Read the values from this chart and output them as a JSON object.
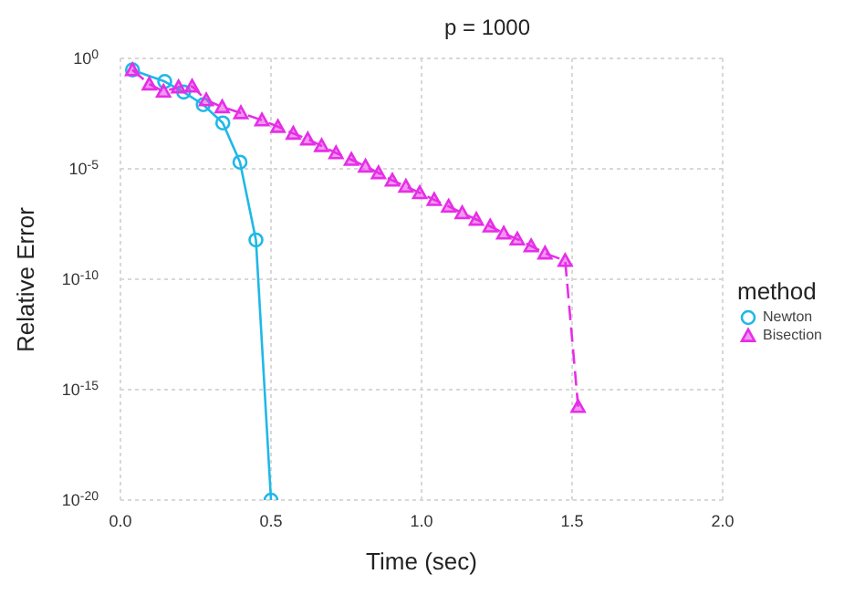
{
  "chart_data": {
    "type": "line",
    "title": "p = 1000",
    "xlabel": "Time (sec)",
    "ylabel": "Relative Error",
    "legend_title": "method",
    "log": "y",
    "grid": true,
    "legend": "right",
    "xlim": [
      0,
      2
    ],
    "xticks": [
      {
        "value": 0,
        "label": "0.0"
      },
      {
        "value": 0.5,
        "label": "0.5"
      },
      {
        "value": 1,
        "label": "1.0"
      },
      {
        "value": 1.5,
        "label": "1.5"
      },
      {
        "value": 2,
        "label": "2.0"
      }
    ],
    "ylim": [
      1e-20,
      1
    ],
    "yticks": [
      {
        "value": 1e-20,
        "label": "10$^{-20}$"
      },
      {
        "value": 1e-15,
        "label": "10$^{-15}$"
      },
      {
        "value": 1e-10,
        "label": "10$^{-10}$"
      },
      {
        "value": 1e-05,
        "label": "10$^{-5}$"
      },
      {
        "value": 1,
        "label": "10$^{0}$"
      }
    ],
    "series": [
      {
        "name": "Newton",
        "color": "#1fb8e8",
        "marker": "circle",
        "line_style": "solid",
        "x": [
          0.04,
          0.147,
          0.21,
          0.275,
          0.34,
          0.397,
          0.45,
          0.5
        ],
        "values": [
          0.3,
          0.09,
          0.03,
          0.008,
          0.0012,
          2e-05,
          6e-09,
          1e-20
        ]
      },
      {
        "name": "Bisection",
        "color": "#e62ee6",
        "marker": "triangle",
        "line_style": "dashed",
        "x": [
          0.04,
          0.096,
          0.143,
          0.193,
          0.238,
          0.285,
          0.338,
          0.4,
          0.47,
          0.523,
          0.574,
          0.622,
          0.668,
          0.716,
          0.767,
          0.814,
          0.857,
          0.903,
          0.948,
          0.994,
          1.042,
          1.09,
          1.135,
          1.182,
          1.228,
          1.273,
          1.318,
          1.364,
          1.41,
          1.477,
          1.52
        ],
        "values": [
          0.3,
          0.068,
          0.032,
          0.05,
          0.054,
          0.013,
          0.0063,
          0.0034,
          0.0016,
          0.00081,
          0.0004,
          0.00022,
          0.00011,
          5.2e-05,
          2.6e-05,
          1.3e-05,
          6.5e-06,
          3e-06,
          1.6e-06,
          8.1e-07,
          4e-07,
          2e-07,
          1e-07,
          5.1e-08,
          2.5e-08,
          1.2e-08,
          6.5e-09,
          3.2e-09,
          1.5e-09,
          6.9e-10,
          1.7e-16
        ]
      }
    ]
  }
}
